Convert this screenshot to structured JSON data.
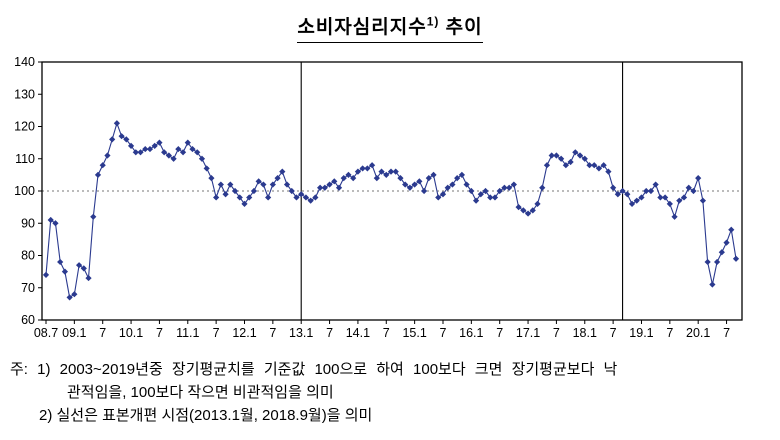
{
  "title": {
    "main": "소비자심리지수",
    "sup": "1)",
    "tail": " 추이"
  },
  "notes": [
    "주: 1) 2003~2019년중 장기평균치를 기준값 100으로 하여 100보다 크면 장기평균보다 낙",
    "관적임을, 100보다 작으면 비관적임을 의미",
    "2) 실선은 표본개편 시점(2013.1월, 2018.9월)을 의미"
  ],
  "colors": {
    "line": "#2b3a8f",
    "axis": "#000000",
    "reference_line": "#777777"
  },
  "chart_data": {
    "type": "line",
    "title": "소비자심리지수 추이",
    "marker": "diamond",
    "x_start": "2008-07",
    "x_end": "2020-09",
    "frequency": "monthly",
    "ylim": [
      60,
      140
    ],
    "yticks": [
      60,
      70,
      80,
      90,
      100,
      110,
      120,
      130,
      140
    ],
    "x_tick_labels": [
      "08.7",
      "09.1",
      "7",
      "10.1",
      "7",
      "11.1",
      "7",
      "12.1",
      "7",
      "13.1",
      "7",
      "14.1",
      "7",
      "15.1",
      "7",
      "16.1",
      "7",
      "17.1",
      "7",
      "18.1",
      "7",
      "19.1",
      "7",
      "20.1",
      "7"
    ],
    "x_tick_indices": [
      0,
      6,
      12,
      18,
      24,
      30,
      36,
      42,
      48,
      54,
      60,
      66,
      72,
      78,
      84,
      90,
      96,
      102,
      108,
      114,
      120,
      126,
      132,
      138,
      144
    ],
    "reference_line_value": 100,
    "vertical_lines_at_index": [
      54,
      122
    ],
    "vertical_lines_meaning": "표본개편 시점(2013.1월, 2018.9월)",
    "grid": false,
    "legend": false,
    "series": [
      {
        "name": "소비자심리지수",
        "color": "#2b3a8f",
        "values": [
          74,
          91,
          90,
          78,
          75,
          67,
          68,
          77,
          76,
          73,
          92,
          105,
          108,
          111,
          116,
          121,
          117,
          116,
          114,
          112,
          112,
          113,
          113,
          114,
          115,
          112,
          111,
          110,
          113,
          112,
          115,
          113,
          112,
          110,
          107,
          104,
          98,
          102,
          99,
          102,
          100,
          98,
          96,
          98,
          100,
          103,
          102,
          98,
          102,
          104,
          106,
          102,
          100,
          98,
          99,
          98,
          97,
          98,
          101,
          101,
          102,
          103,
          101,
          104,
          105,
          104,
          106,
          107,
          107,
          108,
          104,
          106,
          105,
          106,
          106,
          104,
          102,
          101,
          102,
          103,
          100,
          104,
          105,
          98,
          99,
          101,
          102,
          104,
          105,
          102,
          100,
          97,
          99,
          100,
          98,
          98,
          100,
          101,
          101,
          102,
          95,
          94,
          93,
          94,
          96,
          101,
          108,
          111,
          111,
          110,
          108,
          109,
          112,
          111,
          110,
          108,
          108,
          107,
          108,
          106,
          101,
          99,
          100,
          99,
          96,
          97,
          98,
          100,
          100,
          102,
          98,
          98,
          96,
          92,
          97,
          98,
          101,
          100,
          104,
          97,
          78,
          71,
          78,
          81,
          84,
          88,
          79
        ]
      }
    ]
  }
}
